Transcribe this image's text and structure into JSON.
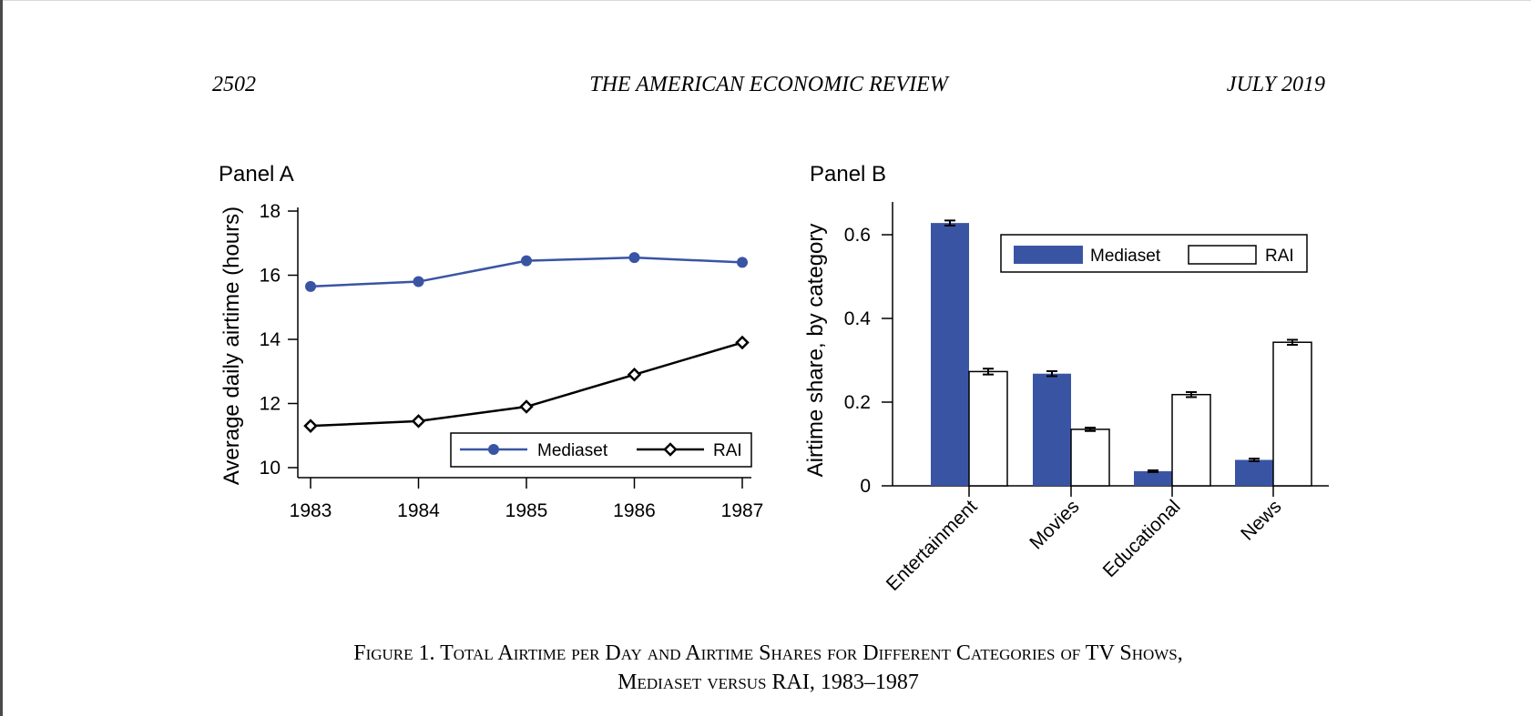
{
  "header": {
    "page_number": "2502",
    "journal": "THE AMERICAN ECONOMIC REVIEW",
    "date": "JULY 2019"
  },
  "caption": {
    "line1": "Figure 1. Total Airtime per Day and Airtime Shares for Different Categories of TV Shows,",
    "line2": "Mediaset versus RAI, 1983–1987"
  },
  "chart_data": [
    {
      "panel": "Panel A",
      "type": "line",
      "ylabel": "Average daily airtime (hours)",
      "xlabel": "",
      "x": [
        1983,
        1984,
        1985,
        1986,
        1987
      ],
      "xticks": [
        "1983",
        "1984",
        "1985",
        "1986",
        "1987"
      ],
      "yticks": [
        "10",
        "12",
        "14",
        "16",
        "18"
      ],
      "ylim": [
        10,
        18
      ],
      "grid": false,
      "legend": "bottom-right",
      "series": [
        {
          "name": "Mediaset",
          "values": [
            15.65,
            15.8,
            16.45,
            16.55,
            16.4
          ],
          "color": "#3a54a4",
          "marker": "circle"
        },
        {
          "name": "RAI",
          "values": [
            11.3,
            11.45,
            11.9,
            12.9,
            13.9
          ],
          "color": "#000000",
          "marker": "diamond"
        }
      ]
    },
    {
      "panel": "Panel B",
      "type": "bar",
      "ylabel": "Airtime share, by category",
      "xlabel": "",
      "categories": [
        "Entertainment",
        "Movies",
        "Educational",
        "News"
      ],
      "yticks": [
        "0",
        "0.2",
        "0.4",
        "0.6"
      ],
      "ylim": [
        0,
        0.68
      ],
      "grid": false,
      "legend": "top-right",
      "series": [
        {
          "name": "Mediaset",
          "values": [
            0.628,
            0.268,
            0.035,
            0.062
          ],
          "err": [
            0.006,
            0.006,
            0.002,
            0.003
          ],
          "fill": "#3a54a4"
        },
        {
          "name": "RAI",
          "values": [
            0.273,
            0.135,
            0.218,
            0.343
          ],
          "err": [
            0.007,
            0.004,
            0.006,
            0.006
          ],
          "fill": "#ffffff"
        }
      ]
    }
  ]
}
